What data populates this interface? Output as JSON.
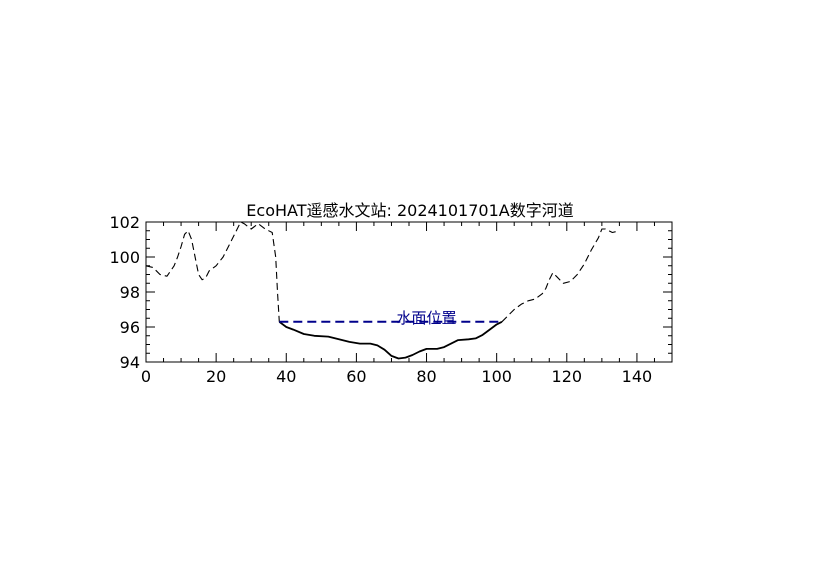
{
  "chart_data": {
    "type": "line",
    "title": "EcoHAT遥感水文站: 2024101701A数字河道",
    "xlabel": "",
    "ylabel": "",
    "xlim": [
      0,
      150
    ],
    "ylim": [
      94,
      102
    ],
    "xticks": [
      0,
      20,
      40,
      60,
      80,
      100,
      120,
      140
    ],
    "yticks": [
      94,
      96,
      98,
      100,
      102
    ],
    "x_tick_labels": [
      "0",
      "20",
      "40",
      "60",
      "80",
      "100",
      "120",
      "140"
    ],
    "y_tick_labels": [
      "94",
      "96",
      "98",
      "100",
      "102"
    ],
    "grid": false,
    "series": [
      {
        "style": "dashed",
        "color": "#000000",
        "points": [
          [
            0,
            99.5
          ],
          [
            2,
            99.4
          ],
          [
            4,
            99.0
          ],
          [
            6,
            98.9
          ],
          [
            7,
            99.2
          ],
          [
            8,
            99.5
          ],
          [
            9,
            100.0
          ],
          [
            10,
            100.6
          ],
          [
            11,
            101.3
          ],
          [
            12,
            101.5
          ],
          [
            13,
            101.0
          ],
          [
            14,
            100.0
          ],
          [
            15,
            99.0
          ],
          [
            16,
            98.7
          ],
          [
            17,
            98.8
          ],
          [
            18,
            99.2
          ],
          [
            20,
            99.5
          ],
          [
            22,
            100.0
          ],
          [
            24,
            100.8
          ],
          [
            26,
            101.6
          ],
          [
            27,
            102.0
          ],
          [
            28,
            101.9
          ],
          [
            30,
            101.6
          ],
          [
            32,
            101.9
          ],
          [
            34,
            101.6
          ],
          [
            36,
            101.4
          ],
          [
            37,
            100.0
          ],
          [
            37.5,
            98.0
          ],
          [
            38,
            96.3
          ]
        ]
      },
      {
        "style": "solid",
        "color": "#000000",
        "points": [
          [
            38,
            96.3
          ],
          [
            40,
            96.0
          ],
          [
            42,
            95.85
          ],
          [
            45,
            95.6
          ],
          [
            48,
            95.5
          ],
          [
            52,
            95.45
          ],
          [
            55,
            95.3
          ],
          [
            58,
            95.15
          ],
          [
            61,
            95.05
          ],
          [
            64,
            95.05
          ],
          [
            66,
            94.95
          ],
          [
            68,
            94.7
          ],
          [
            70,
            94.35
          ],
          [
            72,
            94.2
          ],
          [
            74,
            94.25
          ],
          [
            76,
            94.4
          ],
          [
            78,
            94.6
          ],
          [
            80,
            94.75
          ],
          [
            83,
            94.75
          ],
          [
            85,
            94.85
          ],
          [
            87,
            95.05
          ],
          [
            89,
            95.25
          ],
          [
            92,
            95.3
          ],
          [
            94,
            95.35
          ],
          [
            96,
            95.55
          ],
          [
            98,
            95.85
          ],
          [
            100,
            96.15
          ],
          [
            101.5,
            96.3
          ]
        ]
      },
      {
        "style": "dashed",
        "color": "#000000",
        "points": [
          [
            101.5,
            96.3
          ],
          [
            103,
            96.6
          ],
          [
            105,
            97.0
          ],
          [
            107,
            97.3
          ],
          [
            109,
            97.5
          ],
          [
            111,
            97.6
          ],
          [
            113,
            97.9
          ],
          [
            114,
            98.2
          ],
          [
            115,
            98.7
          ],
          [
            116,
            99.1
          ],
          [
            117,
            98.9
          ],
          [
            119,
            98.5
          ],
          [
            121,
            98.6
          ],
          [
            123,
            99.0
          ],
          [
            125,
            99.6
          ],
          [
            127,
            100.4
          ],
          [
            129,
            101.1
          ],
          [
            130,
            101.6
          ],
          [
            131,
            101.6
          ],
          [
            133,
            101.4
          ],
          [
            135,
            101.5
          ]
        ]
      },
      {
        "name": "水面位置",
        "style": "dashed",
        "color": "#00008b",
        "points": [
          [
            38,
            96.3
          ],
          [
            101.5,
            96.3
          ]
        ]
      }
    ],
    "annotations": [
      {
        "text": "水面位置",
        "x": 80,
        "y": 96.3
      }
    ]
  }
}
